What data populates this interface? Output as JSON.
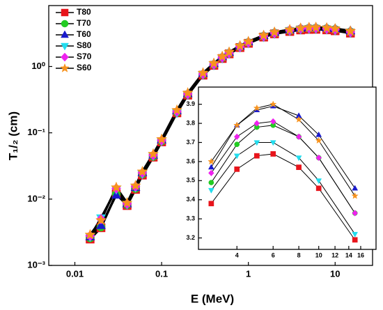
{
  "chart_data": [
    {
      "type": "line",
      "xlabel": "E (MeV)",
      "ylabel": "T₁/₂ (cm)",
      "xscale": "log",
      "yscale": "log",
      "legend": "upper left",
      "line_color": "#000000",
      "xlim": [
        0.005,
        27
      ],
      "ylim": [
        0.001,
        8.3
      ],
      "xticks": [
        0.01,
        0.1,
        1,
        10
      ],
      "yticks": [
        {
          "value": 0.001,
          "label": "10⁻³"
        },
        {
          "value": 0.01,
          "label": "10⁻²"
        },
        {
          "value": 0.1,
          "label": "10⁻¹"
        },
        {
          "value": 1,
          "label": "10⁰"
        }
      ],
      "x": [
        0.015,
        0.02,
        0.03,
        0.04,
        0.05,
        0.06,
        0.08,
        0.1,
        0.15,
        0.2,
        0.3,
        0.4,
        0.5,
        0.6,
        0.8,
        1,
        1.5,
        2,
        3,
        4,
        5,
        6,
        8,
        10,
        15
      ],
      "series": [
        {
          "name": "T80",
          "color": "#e8141b",
          "marker": "square",
          "values": [
            0.0025,
            0.0037,
            0.012,
            0.008,
            0.014,
            0.023,
            0.043,
            0.073,
            0.2,
            0.37,
            0.74,
            1.04,
            1.32,
            1.55,
            1.93,
            2.24,
            2.78,
            3.11,
            3.38,
            3.56,
            3.63,
            3.64,
            3.57,
            3.46,
            3.19
          ]
        },
        {
          "name": "T70",
          "color": "#22cc22",
          "marker": "circle",
          "values": [
            0.0026,
            0.0038,
            0.012,
            0.0082,
            0.0145,
            0.024,
            0.044,
            0.075,
            0.205,
            0.38,
            0.76,
            1.07,
            1.36,
            1.59,
            1.98,
            2.3,
            2.86,
            3.2,
            3.49,
            3.69,
            3.78,
            3.79,
            3.73,
            3.62,
            3.33
          ]
        },
        {
          "name": "T60",
          "color": "#1a1acc",
          "marker": "triangle-up",
          "values": [
            0.0027,
            0.004,
            0.0115,
            0.0085,
            0.015,
            0.025,
            0.046,
            0.078,
            0.215,
            0.39,
            0.79,
            1.11,
            1.41,
            1.64,
            2.04,
            2.37,
            2.94,
            3.29,
            3.57,
            3.79,
            3.87,
            3.89,
            3.84,
            3.74,
            3.46
          ]
        },
        {
          "name": "S80",
          "color": "#22ddee",
          "marker": "triangle-down",
          "values": [
            0.0027,
            0.0052,
            0.014,
            0.0083,
            0.015,
            0.024,
            0.045,
            0.075,
            0.2,
            0.375,
            0.75,
            1.05,
            1.33,
            1.56,
            1.94,
            2.25,
            2.79,
            3.12,
            3.45,
            3.63,
            3.7,
            3.7,
            3.62,
            3.5,
            3.22
          ]
        },
        {
          "name": "S70",
          "color": "#ee22ee",
          "marker": "diamond",
          "values": [
            0.0028,
            0.005,
            0.0145,
            0.0085,
            0.0155,
            0.025,
            0.046,
            0.077,
            0.21,
            0.385,
            0.77,
            1.08,
            1.37,
            1.6,
            1.99,
            2.31,
            2.87,
            3.21,
            3.54,
            3.73,
            3.8,
            3.81,
            3.73,
            3.62,
            3.33
          ]
        },
        {
          "name": "S60",
          "color": "#f7931e",
          "marker": "star",
          "values": [
            0.0029,
            0.0048,
            0.015,
            0.0088,
            0.016,
            0.026,
            0.048,
            0.08,
            0.22,
            0.4,
            0.8,
            1.12,
            1.42,
            1.65,
            2.05,
            2.38,
            2.95,
            3.3,
            3.6,
            3.79,
            3.88,
            3.9,
            3.82,
            3.71,
            3.42
          ]
        }
      ]
    },
    {
      "type": "line",
      "xscale": "log",
      "yscale": "linear",
      "line_color": "#000000",
      "xlim": [
        2.6,
        19
      ],
      "ylim": [
        3.14,
        3.99
      ],
      "xticks": [
        4,
        6,
        8,
        10,
        12,
        14,
        16
      ],
      "yticks": [
        3.2,
        3.3,
        3.4,
        3.5,
        3.6,
        3.7,
        3.8,
        3.9
      ],
      "x": [
        3,
        4,
        5,
        6,
        8,
        10,
        15
      ],
      "series": [
        {
          "name": "T80",
          "color": "#e8141b",
          "marker": "square",
          "values": [
            3.38,
            3.56,
            3.63,
            3.64,
            3.57,
            3.46,
            3.19
          ]
        },
        {
          "name": "T70",
          "color": "#22cc22",
          "marker": "circle",
          "values": [
            3.49,
            3.69,
            3.78,
            3.79,
            3.73,
            3.62,
            3.33
          ]
        },
        {
          "name": "T60",
          "color": "#1a1acc",
          "marker": "triangle-up",
          "values": [
            3.57,
            3.79,
            3.87,
            3.89,
            3.84,
            3.74,
            3.46
          ]
        },
        {
          "name": "S80",
          "color": "#22ddee",
          "marker": "triangle-down",
          "values": [
            3.45,
            3.63,
            3.7,
            3.7,
            3.62,
            3.5,
            3.22
          ]
        },
        {
          "name": "S70",
          "color": "#ee22ee",
          "marker": "diamond",
          "values": [
            3.54,
            3.73,
            3.8,
            3.81,
            3.73,
            3.62,
            3.33
          ]
        },
        {
          "name": "S60",
          "color": "#f7931e",
          "marker": "star",
          "values": [
            3.6,
            3.79,
            3.88,
            3.9,
            3.82,
            3.71,
            3.42
          ]
        }
      ]
    }
  ]
}
